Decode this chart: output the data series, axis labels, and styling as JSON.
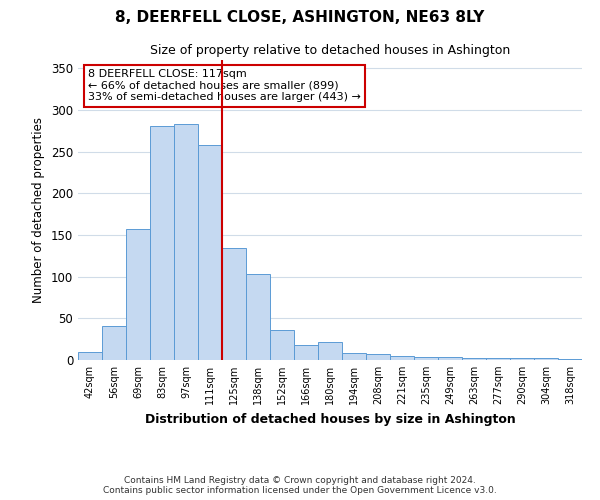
{
  "title": "8, DEERFELL CLOSE, ASHINGTON, NE63 8LY",
  "subtitle": "Size of property relative to detached houses in Ashington",
  "xlabel": "Distribution of detached houses by size in Ashington",
  "ylabel": "Number of detached properties",
  "bar_labels": [
    "42sqm",
    "56sqm",
    "69sqm",
    "83sqm",
    "97sqm",
    "111sqm",
    "125sqm",
    "138sqm",
    "152sqm",
    "166sqm",
    "180sqm",
    "194sqm",
    "208sqm",
    "221sqm",
    "235sqm",
    "249sqm",
    "263sqm",
    "277sqm",
    "290sqm",
    "304sqm",
    "318sqm"
  ],
  "bar_heights": [
    10,
    41,
    157,
    281,
    283,
    258,
    134,
    103,
    36,
    18,
    22,
    8,
    7,
    5,
    4,
    4,
    3,
    3,
    3,
    2,
    1
  ],
  "bar_color": "#c5d9f1",
  "bar_edge_color": "#5b9bd5",
  "vline_x_index": 5,
  "vline_color": "#cc0000",
  "annotation_title": "8 DEERFELL CLOSE: 117sqm",
  "annotation_line1": "← 66% of detached houses are smaller (899)",
  "annotation_line2": "33% of semi-detached houses are larger (443) →",
  "annotation_box_color": "#ffffff",
  "annotation_box_edge": "#cc0000",
  "ylim": [
    0,
    360
  ],
  "yticks": [
    0,
    50,
    100,
    150,
    200,
    250,
    300,
    350
  ],
  "footer_line1": "Contains HM Land Registry data © Crown copyright and database right 2024.",
  "footer_line2": "Contains public sector information licensed under the Open Government Licence v3.0.",
  "background_color": "#ffffff",
  "grid_color": "#d0dce8"
}
